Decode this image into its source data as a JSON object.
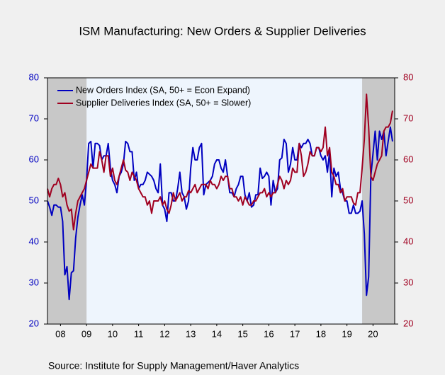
{
  "chart_data": {
    "type": "line",
    "title": "ISM Manufacturing: New Orders & Supplier Deliveries",
    "source": "Source:  Institute for Supply Management/Haver Analytics",
    "x": [
      2008,
      2008.083,
      2008.167,
      2008.25,
      2008.333,
      2008.417,
      2008.5,
      2008.583,
      2008.667,
      2008.75,
      2008.833,
      2008.917,
      2009,
      2009.083,
      2009.167,
      2009.25,
      2009.333,
      2009.417,
      2009.5,
      2009.583,
      2009.667,
      2009.75,
      2009.833,
      2009.917,
      2010,
      2010.083,
      2010.167,
      2010.25,
      2010.333,
      2010.417,
      2010.5,
      2010.583,
      2010.667,
      2010.75,
      2010.833,
      2010.917,
      2011,
      2011.083,
      2011.167,
      2011.25,
      2011.333,
      2011.417,
      2011.5,
      2011.583,
      2011.667,
      2011.75,
      2011.833,
      2011.917,
      2012,
      2012.083,
      2012.167,
      2012.25,
      2012.333,
      2012.417,
      2012.5,
      2012.583,
      2012.667,
      2012.75,
      2012.833,
      2012.917,
      2013,
      2013.083,
      2013.167,
      2013.25,
      2013.333,
      2013.417,
      2013.5,
      2013.583,
      2013.667,
      2013.75,
      2013.833,
      2013.917,
      2014,
      2014.083,
      2014.167,
      2014.25,
      2014.333,
      2014.417,
      2014.5,
      2014.583,
      2014.667,
      2014.75,
      2014.833,
      2014.917,
      2015,
      2015.083,
      2015.167,
      2015.25,
      2015.333,
      2015.417,
      2015.5,
      2015.583,
      2015.667,
      2015.75,
      2015.833,
      2015.917,
      2016,
      2016.083,
      2016.167,
      2016.25,
      2016.333,
      2016.417,
      2016.5,
      2016.583,
      2016.667,
      2016.75,
      2016.833,
      2016.917,
      2017,
      2017.083,
      2017.167,
      2017.25,
      2017.333,
      2017.417,
      2017.5,
      2017.583,
      2017.667,
      2017.75,
      2017.833,
      2017.917,
      2018,
      2018.083,
      2018.167,
      2018.25,
      2018.333,
      2018.417,
      2018.5,
      2018.583,
      2018.667,
      2018.75,
      2018.833,
      2018.917,
      2019,
      2019.083,
      2019.167,
      2019.25,
      2019.333,
      2019.417,
      2019.5,
      2019.583,
      2019.667,
      2019.75,
      2019.833,
      2019.917,
      2020,
      2020.083,
      2020.167,
      2020.25,
      2020.333,
      2020.417,
      2020.5,
      2020.583,
      2020.667,
      2020.75,
      2020.833,
      2020.917,
      2021,
      2021.083,
      2021.167,
      2021.25
    ],
    "series": [
      {
        "name": "New Orders Index (SA, 50+ = Econ Expand)",
        "color": "#0000c0",
        "values": [
          50,
          48.5,
          46.5,
          49,
          49,
          48.5,
          48.5,
          45,
          32,
          34,
          26,
          32.5,
          33,
          41,
          46,
          49,
          51.5,
          49,
          55,
          64,
          64.5,
          58,
          64,
          64,
          63.5,
          60,
          61,
          61,
          64,
          58,
          55,
          54,
          52,
          56,
          57,
          59,
          64.5,
          64,
          62,
          62,
          55,
          57,
          53,
          54,
          54,
          55,
          57,
          56.5,
          56,
          55,
          53,
          52,
          59,
          49,
          48,
          45,
          52,
          52,
          50,
          50,
          53,
          57,
          52,
          51,
          48,
          50,
          58,
          63,
          60,
          60,
          63,
          64,
          51.5,
          54,
          54.5,
          55,
          56,
          59,
          60,
          60,
          58,
          57,
          60,
          56,
          52,
          52,
          51,
          53,
          54,
          56,
          56,
          51.5,
          50,
          52,
          48.5,
          49,
          51.5,
          51.5,
          58,
          55.5,
          56,
          57,
          56,
          49,
          55,
          52,
          53,
          60,
          60.5,
          65,
          64,
          57,
          59,
          63,
          60,
          60,
          64,
          63,
          64,
          64,
          65,
          64,
          61,
          61,
          63,
          63,
          61,
          60,
          61,
          57,
          62,
          51,
          58,
          56,
          57,
          53,
          52,
          50,
          50,
          47,
          47,
          49,
          47,
          47,
          47.5,
          50,
          42,
          27,
          31.5,
          56,
          61.5,
          67,
          60,
          67,
          65,
          67,
          61,
          64.5,
          68,
          64.5
        ]
      },
      {
        "name": "Supplier Deliveries Index (SA, 50+ = Slower)",
        "color": "#a00020",
        "axis": "y2",
        "values": [
          53,
          51,
          53,
          54,
          54,
          55.5,
          54,
          51,
          52,
          49,
          47.5,
          48,
          43,
          47,
          50,
          51,
          52,
          53,
          55,
          57,
          59,
          58,
          58,
          58,
          62,
          60,
          57,
          61,
          61,
          56,
          58,
          55,
          54,
          56,
          58,
          60,
          57.5,
          57,
          55,
          57,
          56,
          55,
          53,
          52,
          51,
          51,
          49,
          50,
          47,
          50,
          50,
          50,
          51,
          49,
          50,
          48,
          47,
          49,
          52,
          50,
          51,
          52,
          50,
          51,
          51,
          52.5,
          52,
          53,
          54,
          52,
          53,
          54,
          54,
          54,
          53,
          55,
          54,
          54,
          53,
          54,
          56,
          55,
          56,
          56,
          53,
          53,
          51,
          51,
          50,
          51,
          49,
          51,
          50,
          49,
          49,
          50,
          50,
          51,
          52,
          52,
          53,
          51,
          52,
          51,
          52,
          52,
          54,
          56,
          55,
          53,
          55,
          54,
          55,
          58,
          57,
          57,
          64,
          61,
          56,
          57,
          59,
          62,
          61,
          61,
          63,
          63,
          62,
          63,
          68,
          61,
          63,
          57,
          56,
          54,
          54,
          52,
          53,
          50,
          51,
          51,
          51,
          49.5,
          49,
          52,
          52,
          58,
          65,
          76,
          68,
          56,
          55,
          57,
          59,
          60,
          61,
          67,
          68,
          68,
          69,
          72
        ]
      }
    ],
    "recessions": [
      [
        2008,
        2009.5
      ],
      [
        2020.083,
        2021.333
      ]
    ],
    "xlim": [
      2008,
      2021.333
    ],
    "xticks": [
      {
        "value": 2008.5,
        "label": "08"
      },
      {
        "value": 2009.5,
        "label": "09"
      },
      {
        "value": 2010.5,
        "label": "10"
      },
      {
        "value": 2011.5,
        "label": "11"
      },
      {
        "value": 2012.5,
        "label": "12"
      },
      {
        "value": 2013.5,
        "label": "13"
      },
      {
        "value": 2014.5,
        "label": "14"
      },
      {
        "value": 2015.5,
        "label": "15"
      },
      {
        "value": 2016.5,
        "label": "16"
      },
      {
        "value": 2017.5,
        "label": "17"
      },
      {
        "value": 2018.5,
        "label": "18"
      },
      {
        "value": 2019.5,
        "label": "19"
      },
      {
        "value": 2020.5,
        "label": "20"
      }
    ],
    "ylim": [
      20,
      80
    ],
    "yticks": [
      20,
      30,
      40,
      50,
      60,
      70,
      80
    ],
    "y2lim": [
      20,
      80
    ],
    "y2ticks": [
      20,
      30,
      40,
      50,
      60,
      70,
      80
    ],
    "legend": "top-left"
  }
}
